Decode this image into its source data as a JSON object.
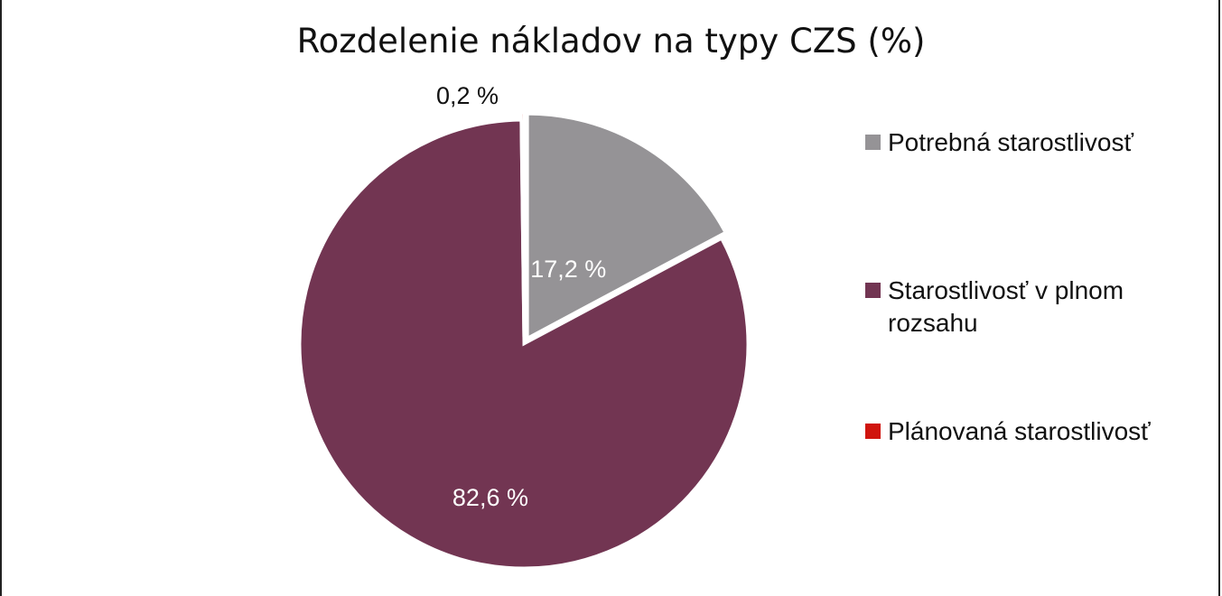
{
  "chart_data": {
    "type": "pie",
    "title": "Rozdelenie nákladov na typy CZS (%)",
    "slices": [
      {
        "name": "Potrebná starostlivosť",
        "value": 17.2,
        "label": "17,2 %",
        "color": "#959396",
        "exploded": true
      },
      {
        "name": "Starostlivosť v plnom rozsahu",
        "value": 82.6,
        "label": "82,6 %",
        "color": "#723552",
        "exploded": false
      },
      {
        "name": "Plánovaná starostlivosť",
        "value": 0.2,
        "label": "0,2 %",
        "color": "#d0140d",
        "exploded": true
      }
    ],
    "legend_position": "right"
  }
}
